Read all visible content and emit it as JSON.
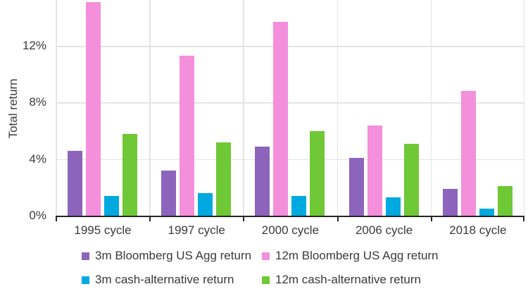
{
  "chart_data": {
    "type": "bar",
    "title": "",
    "xlabel": "",
    "ylabel": "Total return",
    "categories": [
      "1995 cycle",
      "1997 cycle",
      "2000 cycle",
      "2006 cycle",
      "2018 cycle"
    ],
    "series": [
      {
        "name": "3m Bloomberg US Agg return",
        "color": "#8D64BC",
        "values": [
          4.6,
          3.2,
          4.9,
          4.1,
          1.9
        ]
      },
      {
        "name": "12m Bloomberg US Agg return",
        "color": "#F48FDB",
        "values": [
          15.1,
          11.3,
          13.7,
          6.4,
          8.8
        ]
      },
      {
        "name": "3m cash-alternative return",
        "color": "#00A9E0",
        "values": [
          1.4,
          1.6,
          1.4,
          1.3,
          0.5
        ]
      },
      {
        "name": "12m cash-alternative return",
        "color": "#6FC836",
        "values": [
          5.8,
          5.2,
          6.0,
          5.1,
          2.1
        ]
      }
    ],
    "y_ticks": [
      "0%",
      "4%",
      "8%",
      "12%"
    ],
    "y_tick_values": [
      0,
      4,
      8,
      12
    ],
    "ylim": [
      0,
      15.1
    ],
    "grid": true,
    "legend_position": "bottom"
  }
}
